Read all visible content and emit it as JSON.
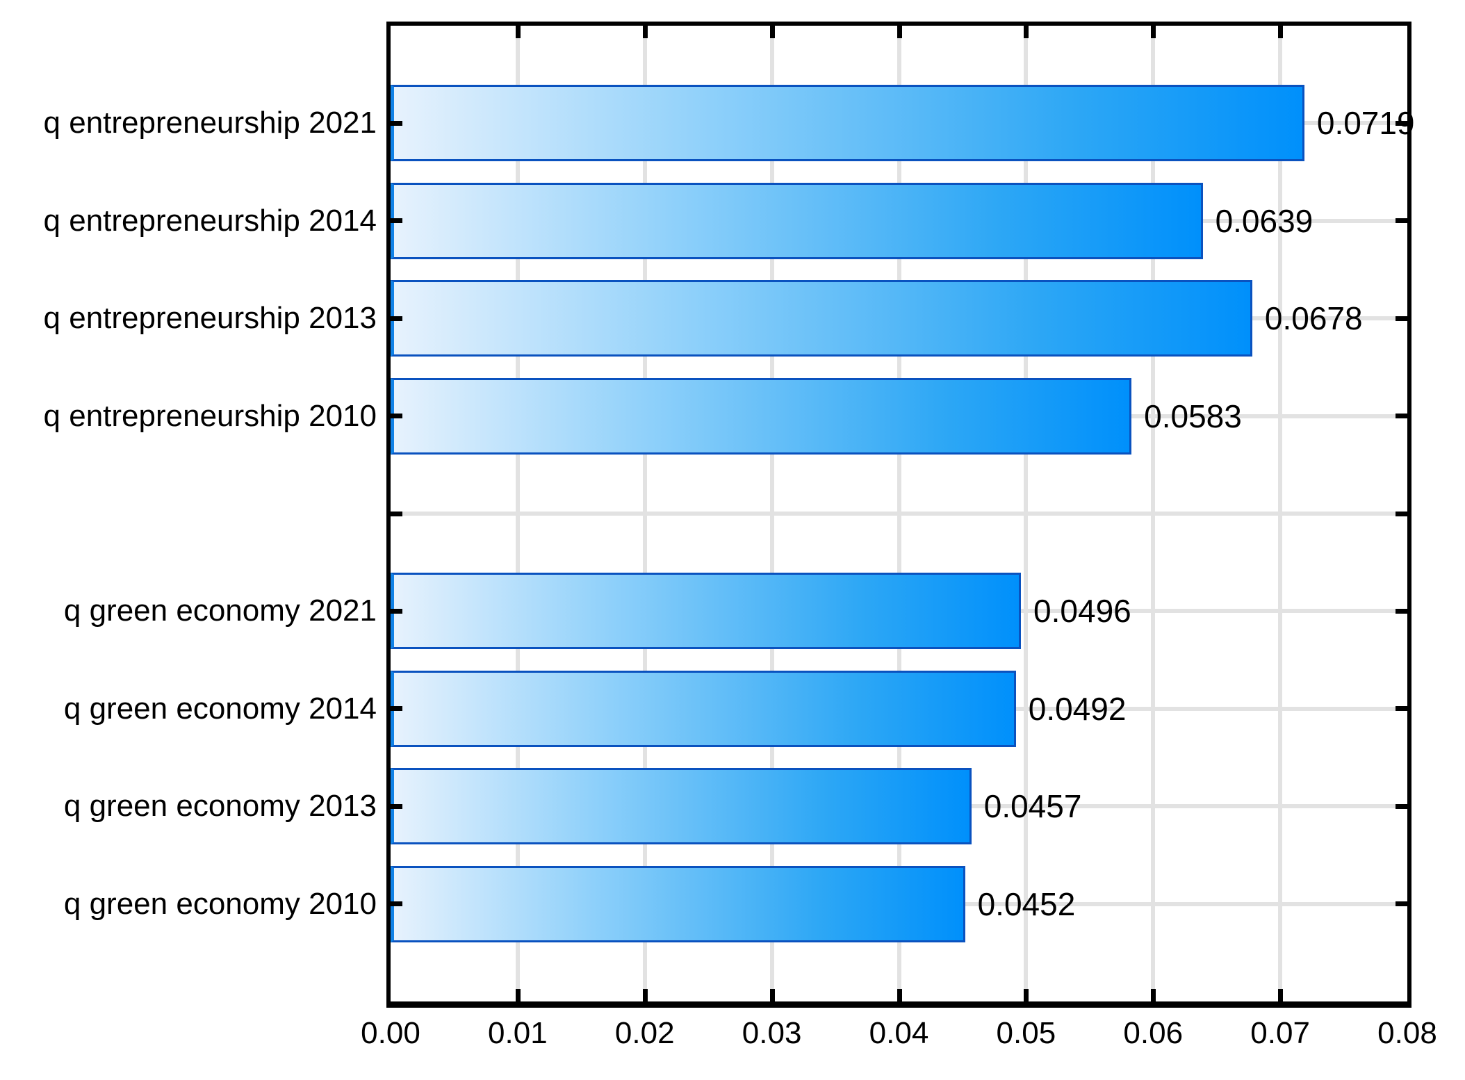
{
  "chart_data": {
    "type": "bar",
    "orientation": "horizontal",
    "title": "",
    "xlabel": "",
    "ylabel": "",
    "xlim": [
      0,
      0.08
    ],
    "x_tick_labels": [
      "0.00",
      "0.01",
      "0.02",
      "0.03",
      "0.04",
      "0.05",
      "0.06",
      "0.07",
      "0.08"
    ],
    "grid": true,
    "legend": "none",
    "rows": [
      {
        "label": "q entrepreneurship 2021",
        "value": 0.0719,
        "value_label": "0.0719"
      },
      {
        "label": "q entrepreneurship 2014",
        "value": 0.0639,
        "value_label": "0.0639"
      },
      {
        "label": "q entrepreneurship 2013",
        "value": 0.0678,
        "value_label": "0.0678"
      },
      {
        "label": "q entrepreneurship 2010",
        "value": 0.0583,
        "value_label": "0.0583"
      },
      {
        "label": "",
        "value": null,
        "value_label": ""
      },
      {
        "label": "q green economy 2021",
        "value": 0.0496,
        "value_label": "0.0496"
      },
      {
        "label": "q green economy 2014",
        "value": 0.0492,
        "value_label": "0.0492"
      },
      {
        "label": "q green economy 2013",
        "value": 0.0457,
        "value_label": "0.0457"
      },
      {
        "label": "q green economy 2010",
        "value": 0.0452,
        "value_label": "0.0452"
      }
    ],
    "colors": {
      "bar_gradient_start": "#e7f2fd",
      "bar_gradient_end": "#0090fb",
      "bar_border": "#0a52bf",
      "grid_color": "#e2e2e2",
      "frame_color": "#000000",
      "text_color": "#000000"
    }
  }
}
